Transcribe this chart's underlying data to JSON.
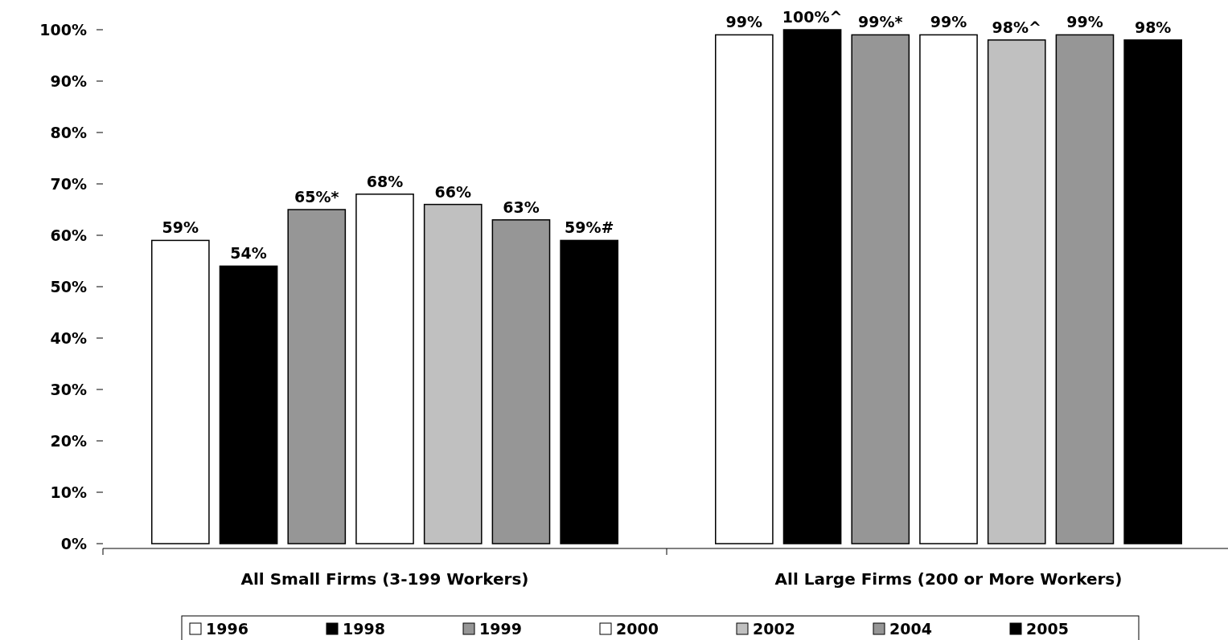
{
  "chart_data": {
    "type": "bar",
    "categories": [
      "All Small Firms (3-199 Workers)",
      "All Large Firms (200 or More Workers)"
    ],
    "ylim": [
      0,
      100
    ],
    "yticks": [
      {
        "value": 0,
        "label": "0%"
      },
      {
        "value": 10,
        "label": "10%"
      },
      {
        "value": 20,
        "label": "20%"
      },
      {
        "value": 30,
        "label": "30%"
      },
      {
        "value": 40,
        "label": "40%"
      },
      {
        "value": 50,
        "label": "50%"
      },
      {
        "value": 60,
        "label": "60%"
      },
      {
        "value": 70,
        "label": "70%"
      },
      {
        "value": 80,
        "label": "80%"
      },
      {
        "value": 90,
        "label": "90%"
      },
      {
        "value": 100,
        "label": "100%"
      }
    ],
    "grid": false,
    "legend": "bottom",
    "series": [
      {
        "name": "1996",
        "color": "#ffffff",
        "values": [
          59,
          99
        ],
        "value_labels": [
          "59%",
          "99%"
        ]
      },
      {
        "name": "1998",
        "color": "#000000",
        "values": [
          54,
          100
        ],
        "value_labels": [
          "54%",
          "100%^"
        ]
      },
      {
        "name": "1999",
        "color": "#969696",
        "values": [
          65,
          99
        ],
        "value_labels": [
          "65%*",
          "99%*"
        ]
      },
      {
        "name": "2000",
        "color": "#ffffff",
        "values": [
          68,
          99
        ],
        "value_labels": [
          "68%",
          "99%"
        ]
      },
      {
        "name": "2002",
        "color": "#c0c0c0",
        "values": [
          66,
          98
        ],
        "value_labels": [
          "66%",
          "98%^"
        ]
      },
      {
        "name": "2004",
        "color": "#969696",
        "values": [
          63,
          99
        ],
        "value_labels": [
          "63%",
          "99%"
        ]
      },
      {
        "name": "2005",
        "color": "#000000",
        "values": [
          59,
          98
        ],
        "value_labels": [
          "59%#",
          "98%"
        ]
      }
    ]
  }
}
